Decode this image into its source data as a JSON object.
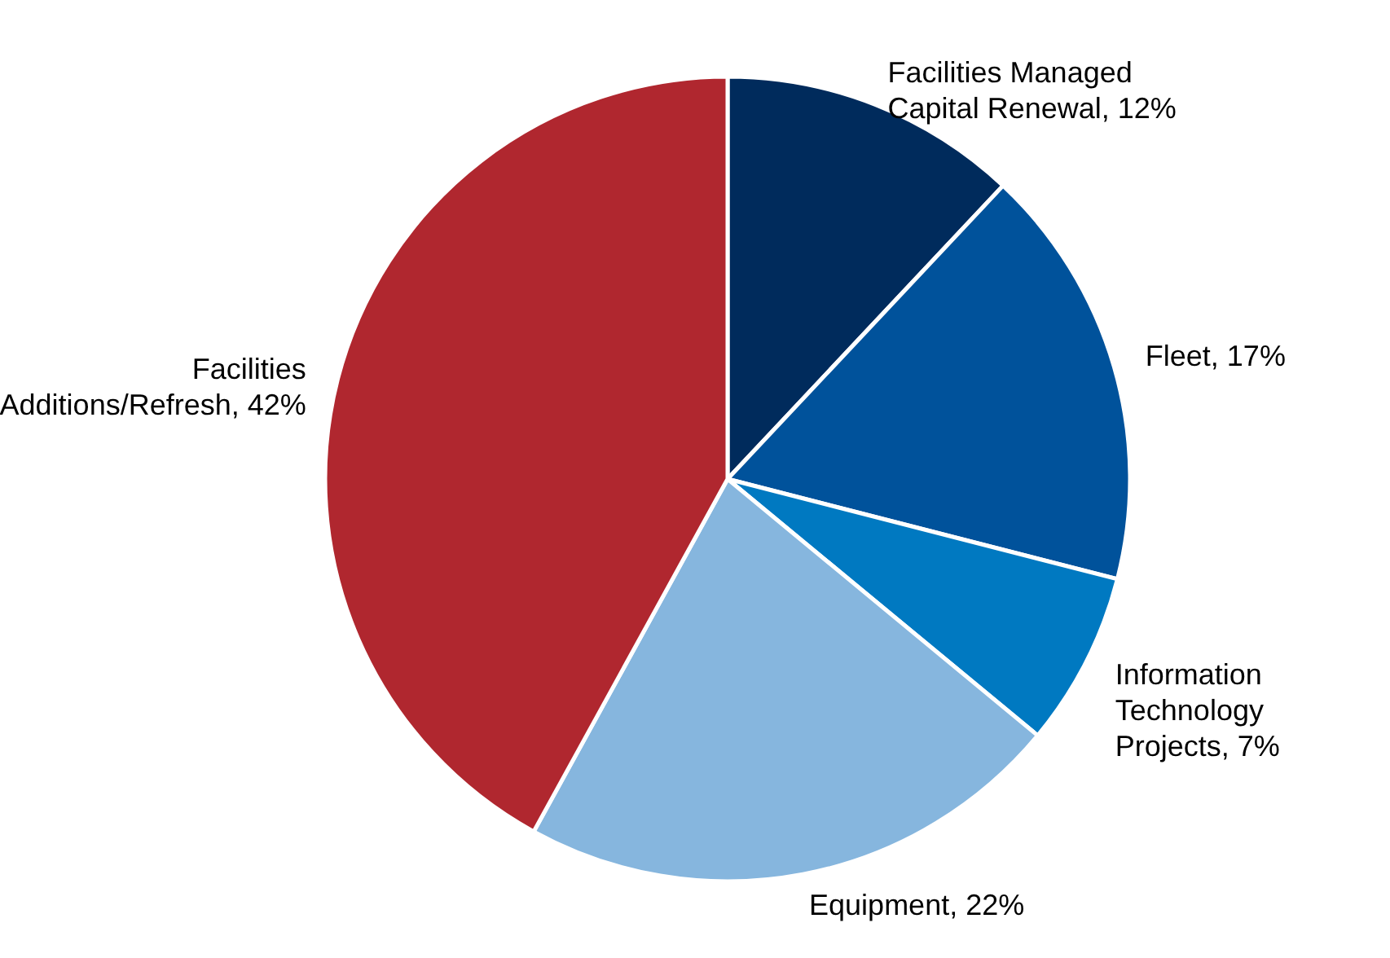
{
  "chart_data": {
    "type": "pie",
    "categories": [
      "Facilities Managed Capital Renewal",
      "Fleet",
      "Information Technology Projects",
      "Equipment",
      "Facilities Additions/Refresh"
    ],
    "values": [
      12,
      17,
      7,
      22,
      42
    ],
    "value_labels": [
      "12%",
      "17%",
      "7%",
      "22%",
      "42%"
    ],
    "colors": [
      "#002b5c",
      "#00529b",
      "#0079c1",
      "#86b6de",
      "#b0272f"
    ]
  }
}
